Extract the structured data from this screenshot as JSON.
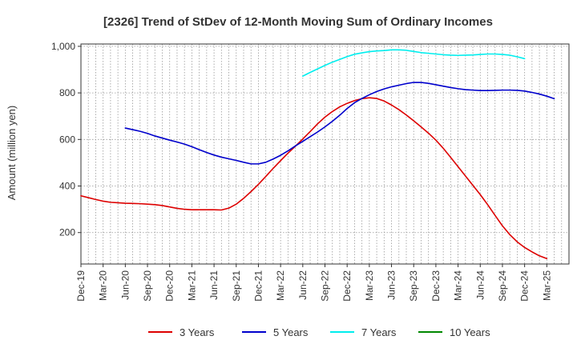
{
  "chart_data": {
    "type": "line",
    "title": "[2326]  Trend of StDev of 12-Month Moving Sum of Ordinary Incomes",
    "xlabel": "",
    "ylabel": "Amount (million yen)",
    "ylim": [
      65,
      1010
    ],
    "yticks": [
      200,
      400,
      600,
      800,
      1000
    ],
    "ytick_labels": [
      "200",
      "400",
      "600",
      "800",
      "1,000"
    ],
    "x_start": "Dec-19",
    "x_months_total": 66,
    "xtick_labels": [
      "Dec-19",
      "Mar-20",
      "Jun-20",
      "Sep-20",
      "Dec-20",
      "Mar-21",
      "Jun-21",
      "Sep-21",
      "Dec-21",
      "Mar-22",
      "Jun-22",
      "Sep-22",
      "Dec-22",
      "Mar-23",
      "Jun-23",
      "Sep-23",
      "Dec-23",
      "Mar-24",
      "Jun-24",
      "Sep-24",
      "Dec-24",
      "Mar-25"
    ],
    "grid": true,
    "legend_position": "bottom",
    "series": [
      {
        "name": "3 Years",
        "color": "#dd0000",
        "start_index": 0,
        "values": [
          358,
          350,
          342,
          335,
          330,
          328,
          326,
          325,
          324,
          322,
          320,
          316,
          310,
          304,
          300,
          298,
          298,
          298,
          298,
          297,
          305,
          322,
          347,
          376,
          407,
          441,
          476,
          509,
          541,
          571,
          602,
          634,
          667,
          696,
          720,
          740,
          755,
          767,
          775,
          779,
          776,
          765,
          748,
          728,
          705,
          680,
          654,
          627,
          597,
          562,
          523,
          483,
          443,
          403,
          363,
          320,
          274,
          229,
          191,
          160,
          136,
          117,
          100,
          88
        ]
      },
      {
        "name": "5 Years",
        "color": "#0000cc",
        "start_index": 6,
        "values": [
          649,
          642,
          635,
          626,
          615,
          606,
          597,
          589,
          580,
          569,
          556,
          544,
          533,
          524,
          517,
          510,
          502,
          495,
          495,
          502,
          516,
          532,
          551,
          572,
          592,
          612,
          632,
          654,
          678,
          704,
          733,
          758,
          776,
          792,
          806,
          817,
          826,
          833,
          840,
          845,
          845,
          841,
          835,
          829,
          823,
          818,
          814,
          812,
          810,
          810,
          811,
          812,
          812,
          811,
          808,
          802,
          795,
          786,
          775
        ]
      },
      {
        "name": "7 Years",
        "color": "#00eeee",
        "start_index": 30,
        "values": [
          872,
          888,
          903,
          918,
          932,
          944,
          956,
          966,
          972,
          977,
          980,
          982,
          985,
          985,
          983,
          978,
          973,
          970,
          967,
          964,
          962,
          961,
          962,
          963,
          965,
          967,
          967,
          965,
          962,
          955,
          947
        ]
      },
      {
        "name": "10 Years",
        "color": "#008800",
        "start_index": 0,
        "values": []
      }
    ]
  }
}
